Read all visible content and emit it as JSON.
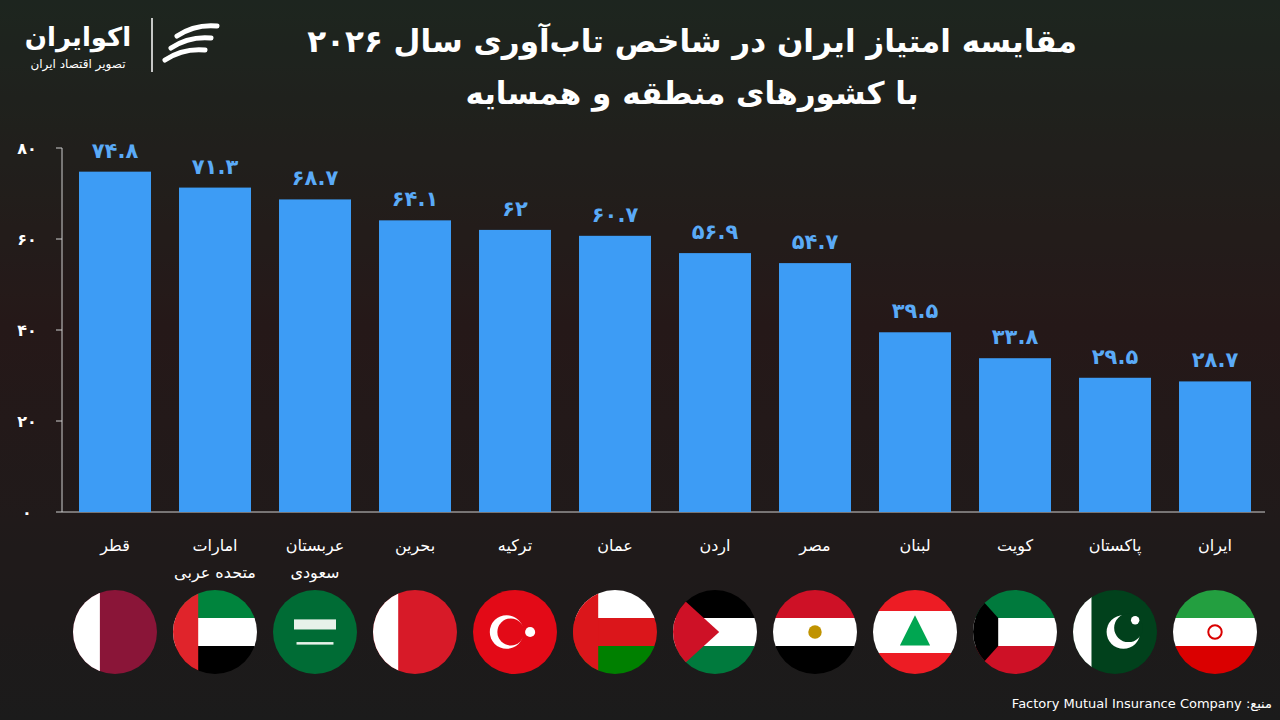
{
  "chart_data": {
    "type": "bar",
    "title": "مقایسه امتیاز ایران در شاخص تاب‌آوری سال ۲۰۲۶",
    "subtitle": "با کشورهای منطقه و همسایه",
    "categories": [
      "قطر",
      "امارات متحده عربی",
      "عربستان سعودی",
      "بحرین",
      "ترکیه",
      "عمان",
      "اردن",
      "مصر",
      "لبنان",
      "کویت",
      "پاکستان",
      "ایران"
    ],
    "values": [
      74.8,
      71.3,
      68.7,
      64.1,
      62,
      60.7,
      56.9,
      54.7,
      39.5,
      33.8,
      29.5,
      28.7
    ],
    "value_labels": [
      "۷۴.۸",
      "۷۱.۳",
      "۶۸.۷",
      "۶۴.۱",
      "۶۲",
      "۶۰.۷",
      "۵۶.۹",
      "۵۴.۷",
      "۳۹.۵",
      "۳۳.۸",
      "۲۹.۵",
      "۲۸.۷"
    ],
    "color": "#3d9cf5",
    "ylim": [
      0,
      80
    ],
    "yticks": [
      {
        "value": 0,
        "label": "۰"
      },
      {
        "value": 20,
        "label": "۲۰"
      },
      {
        "value": 40,
        "label": "۴۰"
      },
      {
        "value": 60,
        "label": "۶۰"
      },
      {
        "value": 80,
        "label": "۸۰"
      }
    ],
    "grid": false,
    "data_labels": true,
    "source": "منبع: Factory Mutual Insurance Company"
  },
  "brand": {
    "name": "اکوایران",
    "tagline": "تصویر اقتصاد ایران"
  }
}
